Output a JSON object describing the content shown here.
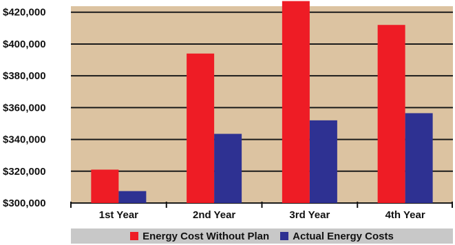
{
  "colors": {
    "plot_background": "#dcc3a1",
    "gridline": "#1a1a1a",
    "series_without_plan": "#ee1c25",
    "series_actual": "#2e3192",
    "legend_background": "#c8c8c8"
  },
  "chart_data": {
    "type": "bar",
    "categories": [
      "1st Year",
      "2nd Year",
      "3rd Year",
      "4th Year"
    ],
    "series": [
      {
        "name": "Energy Cost Without Plan",
        "values": [
          321000,
          394000,
          427000,
          412000
        ]
      },
      {
        "name": "Actual Energy Costs",
        "values": [
          307500,
          343500,
          352000,
          356500
        ]
      }
    ],
    "ylim": [
      300000,
      420000
    ],
    "yticks": [
      300000,
      320000,
      340000,
      360000,
      380000,
      400000,
      420000
    ],
    "ytick_labels": [
      "$300,000",
      "$320,000",
      "$340,000",
      "$360,000",
      "$380,000",
      "$400,000",
      "$420,000"
    ],
    "grid": true,
    "legend_position": "bottom"
  }
}
